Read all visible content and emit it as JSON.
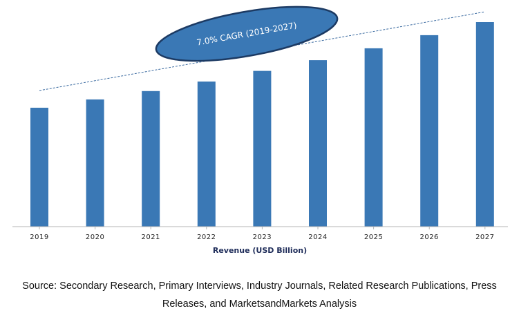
{
  "chart_data": {
    "type": "bar",
    "title": "",
    "categories": [
      "2019",
      "2020",
      "2021",
      "2022",
      "2023",
      "2024",
      "2025",
      "2026",
      "2027"
    ],
    "values": [
      1.0,
      1.07,
      1.14,
      1.22,
      1.31,
      1.4,
      1.5,
      1.61,
      1.72
    ],
    "xlabel": "Revenue (USD Billion)",
    "ylabel": "",
    "ylim": [
      0,
      1.72
    ],
    "grid": false,
    "legend": "none",
    "bar_color": "#3a78b5",
    "annotation": {
      "text": "7.0% CAGR (2019-2027)",
      "fill": "#3a78b5",
      "stroke": "#1c3a63",
      "trend_line": "dashed"
    }
  },
  "footer": {
    "source_line1": "Source: Secondary Research, Primary Interviews, Industry Journals, Related Research Publications, Press",
    "source_line2": "Releases, and MarketsandMarkets Analysis"
  }
}
